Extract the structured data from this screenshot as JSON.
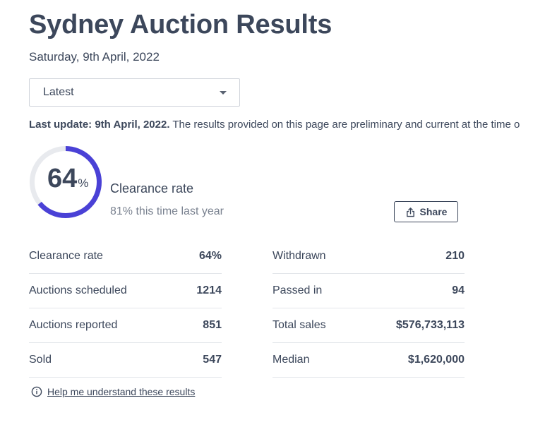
{
  "page": {
    "title": "Sydney Auction Results",
    "date": "Saturday, 9th April, 2022"
  },
  "filter": {
    "selected": "Latest"
  },
  "update": {
    "label": "Last update: 9th April, 2022.",
    "text": " The results provided on this page are preliminary and current at the time o"
  },
  "clearance": {
    "value": "64",
    "unit": "%",
    "fraction": 0.64,
    "label": "Clearance rate",
    "last_year": "81% this time last year",
    "ring_color": "#4a41d6",
    "track_color": "#e8eaee"
  },
  "share": {
    "label": "Share",
    "icon": "share-icon"
  },
  "stats_left": [
    {
      "label": "Clearance rate",
      "value": "64%"
    },
    {
      "label": "Auctions scheduled",
      "value": "1214"
    },
    {
      "label": "Auctions reported",
      "value": "851"
    },
    {
      "label": "Sold",
      "value": "547"
    }
  ],
  "stats_right": [
    {
      "label": "Withdrawn",
      "value": "210"
    },
    {
      "label": "Passed in",
      "value": "94"
    },
    {
      "label": "Total sales",
      "value": "$576,733,113"
    },
    {
      "label": "Median",
      "value": "$1,620,000"
    }
  ],
  "help": {
    "label": "Help me understand these results",
    "icon": "info-icon"
  }
}
